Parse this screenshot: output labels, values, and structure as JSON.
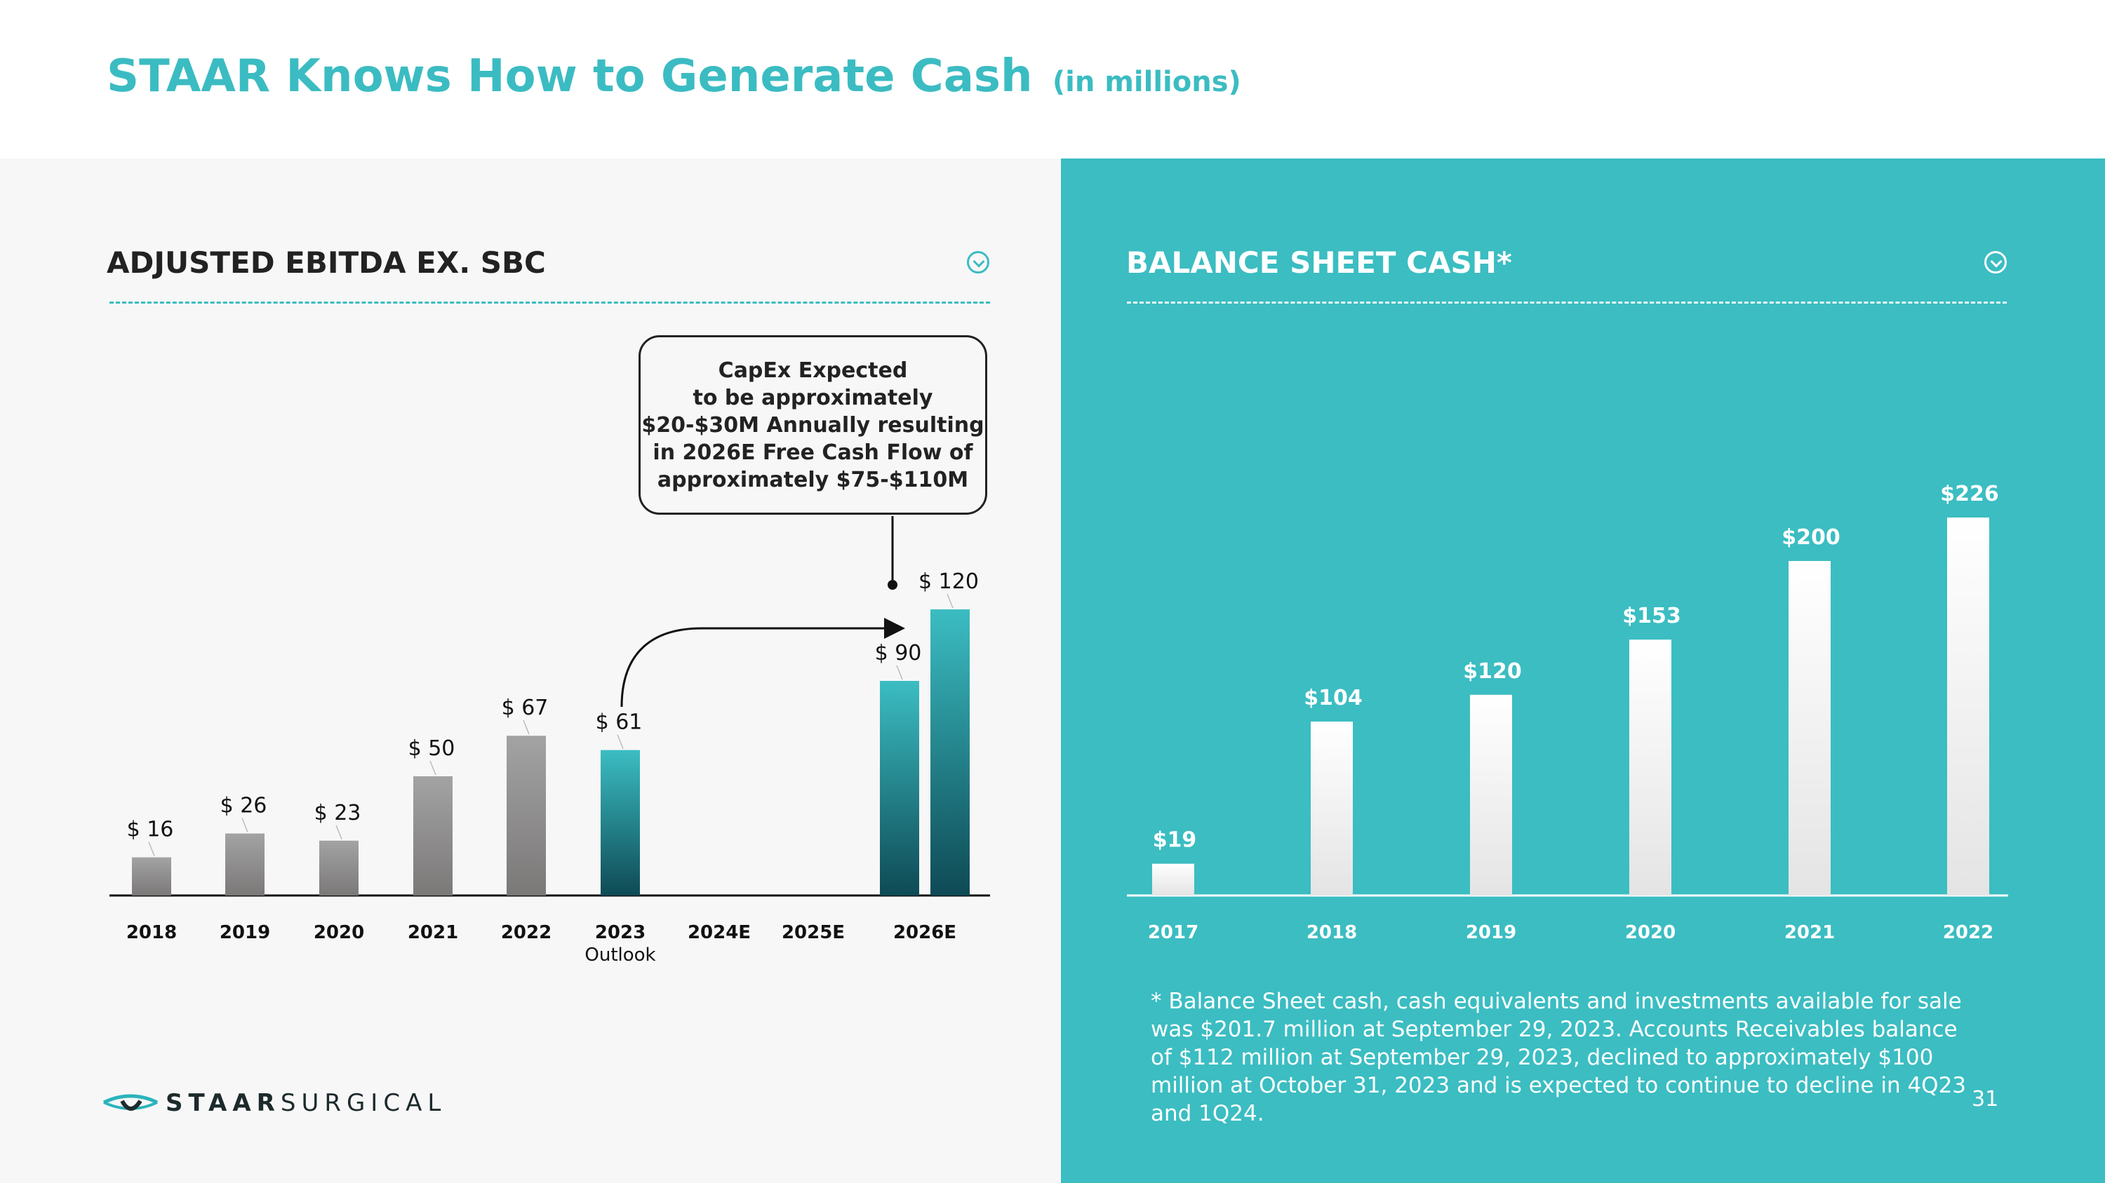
{
  "title": {
    "main": "STAAR Knows How to Generate Cash",
    "sub": "(in millions)"
  },
  "logo": {
    "bold": "STAAR",
    "light": "SURGICAL"
  },
  "page_number": "31",
  "callout": "CapEx Expected\nto be approximately\n$20-$30M Annually resulting\nin 2026E Free Cash Flow of\napproximately $75-$110M",
  "footnote": "* Balance Sheet cash, cash equivalents and investments available for sale was $201.7 million at September 29, 2023. Accounts Receivables balance of $112 million at September 29, 2023, declined to approximately $100 million at October 31, 2023 and is expected to continue to decline in 4Q23 and 1Q24.",
  "colors": {
    "accent": "#3bbcc2",
    "right_panel": "#3bbdc2",
    "gray_bar_top": "#a3a3a3",
    "gray_bar_bottom": "#7b7878",
    "teal_bar_top": "#3bbdc2",
    "teal_bar_bottom": "#0e4a55"
  },
  "chart_data": [
    {
      "type": "bar",
      "title": "ADJUSTED EBITDA EX. SBC",
      "categories": [
        "2018",
        "2019",
        "2020",
        "2021",
        "2022",
        "2023\nOutlook",
        "2024E",
        "2025E",
        "2026E"
      ],
      "bars": [
        {
          "category": "2018",
          "value": 16,
          "label": "$ 16",
          "style": "actual"
        },
        {
          "category": "2019",
          "value": 26,
          "label": "$ 26",
          "style": "actual"
        },
        {
          "category": "2020",
          "value": 23,
          "label": "$ 23",
          "style": "actual"
        },
        {
          "category": "2021",
          "value": 50,
          "label": "$ 50",
          "style": "actual"
        },
        {
          "category": "2022",
          "value": 67,
          "label": "$ 67",
          "style": "actual"
        },
        {
          "category": "2023\nOutlook",
          "value": 61,
          "label": "$ 61",
          "style": "projected"
        },
        {
          "category": "2026E",
          "value": 90,
          "label": "$ 90",
          "style": "projected"
        },
        {
          "category": "2026E",
          "value": 120,
          "label": "$ 120",
          "style": "projected"
        }
      ],
      "ylim": [
        0,
        120
      ],
      "grid": false,
      "legend": "none",
      "annotations": [
        "arrow from 2023 Outlook to 2026E",
        "CapEx callout box pointing to 2026E"
      ]
    },
    {
      "type": "bar",
      "title": "BALANCE SHEET CASH*",
      "categories": [
        "2017",
        "2018",
        "2019",
        "2020",
        "2021",
        "2022"
      ],
      "values": [
        19,
        104,
        120,
        153,
        200,
        226
      ],
      "labels": [
        "$19",
        "$104",
        "$120",
        "$153",
        "$200",
        "$226"
      ],
      "ylim": [
        0,
        226
      ],
      "grid": false,
      "legend": "none"
    }
  ]
}
